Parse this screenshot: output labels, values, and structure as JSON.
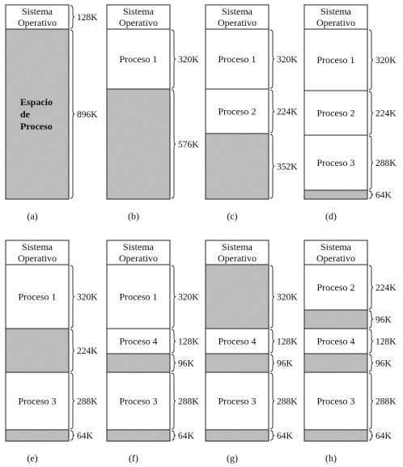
{
  "colors": {
    "free": "#c9c9c9",
    "used": "#ffffff",
    "line": "#222222"
  },
  "diagrams": [
    {
      "caption": "(a)",
      "blocks": [
        {
          "lines": [
            "Sistema",
            "Operativo"
          ],
          "size": "128K",
          "free": false
        },
        {
          "lines": [
            "Espacio",
            "de",
            "Proceso"
          ],
          "size": "896K",
          "free": true
        }
      ]
    },
    {
      "caption": "(b)",
      "blocks": [
        {
          "lines": [
            "Sistema",
            "Operativo"
          ],
          "size": "",
          "free": false
        },
        {
          "lines": [
            "Proceso 1"
          ],
          "size": "320K",
          "free": false
        },
        {
          "lines": [],
          "size": "576K",
          "free": true
        }
      ]
    },
    {
      "caption": "(c)",
      "blocks": [
        {
          "lines": [
            "Sistema",
            "Operativo"
          ],
          "size": "",
          "free": false
        },
        {
          "lines": [
            "Proceso 1"
          ],
          "size": "320K",
          "free": false
        },
        {
          "lines": [
            "Proceso 2"
          ],
          "size": "224K",
          "free": false
        },
        {
          "lines": [],
          "size": "352K",
          "free": true
        }
      ]
    },
    {
      "caption": "(d)",
      "blocks": [
        {
          "lines": [
            "Sistema",
            "Operativo"
          ],
          "size": "",
          "free": false
        },
        {
          "lines": [
            "Proceso 1"
          ],
          "size": "320K",
          "free": false
        },
        {
          "lines": [
            "Proceso 2"
          ],
          "size": "224K",
          "free": false
        },
        {
          "lines": [
            "Proceso 3"
          ],
          "size": "288K",
          "free": false
        },
        {
          "lines": [],
          "size": "64K",
          "free": true
        }
      ]
    },
    {
      "caption": "(e)",
      "blocks": [
        {
          "lines": [
            "Sistema",
            "Operativo"
          ],
          "size": "",
          "free": false
        },
        {
          "lines": [
            "Proceso 1"
          ],
          "size": "320K",
          "free": false
        },
        {
          "lines": [],
          "size": "224K",
          "free": true
        },
        {
          "lines": [
            "Proceso 3"
          ],
          "size": "288K",
          "free": false
        },
        {
          "lines": [],
          "size": "64K",
          "free": true
        }
      ]
    },
    {
      "caption": "(f)",
      "blocks": [
        {
          "lines": [
            "Sistema",
            "Operativo"
          ],
          "size": "",
          "free": false
        },
        {
          "lines": [
            "Proceso 1"
          ],
          "size": "320K",
          "free": false
        },
        {
          "lines": [
            "Proceso 4"
          ],
          "size": "128K",
          "free": false
        },
        {
          "lines": [],
          "size": "96K",
          "free": true
        },
        {
          "lines": [
            "Proceso 3"
          ],
          "size": "288K",
          "free": false
        },
        {
          "lines": [],
          "size": "64K",
          "free": true
        }
      ]
    },
    {
      "caption": "(g)",
      "blocks": [
        {
          "lines": [
            "Sistema",
            "Operativo"
          ],
          "size": "",
          "free": false
        },
        {
          "lines": [],
          "size": "320K",
          "free": true
        },
        {
          "lines": [
            "Proceso 4"
          ],
          "size": "128K",
          "free": false
        },
        {
          "lines": [],
          "size": "96K",
          "free": true
        },
        {
          "lines": [
            "Proceso 3"
          ],
          "size": "288K",
          "free": false
        },
        {
          "lines": [],
          "size": "64K",
          "free": true
        }
      ]
    },
    {
      "caption": "(h)",
      "blocks": [
        {
          "lines": [
            "Sistema",
            "Operativo"
          ],
          "size": "",
          "free": false
        },
        {
          "lines": [
            "Proceso 2"
          ],
          "size": "224K",
          "free": false
        },
        {
          "lines": [],
          "size": "96K",
          "free": true
        },
        {
          "lines": [
            "Proceso 4"
          ],
          "size": "128K",
          "free": false
        },
        {
          "lines": [],
          "size": "96K",
          "free": true
        },
        {
          "lines": [
            "Proceso 3"
          ],
          "size": "288K",
          "free": false
        },
        {
          "lines": [],
          "size": "64K",
          "free": true
        }
      ]
    }
  ]
}
